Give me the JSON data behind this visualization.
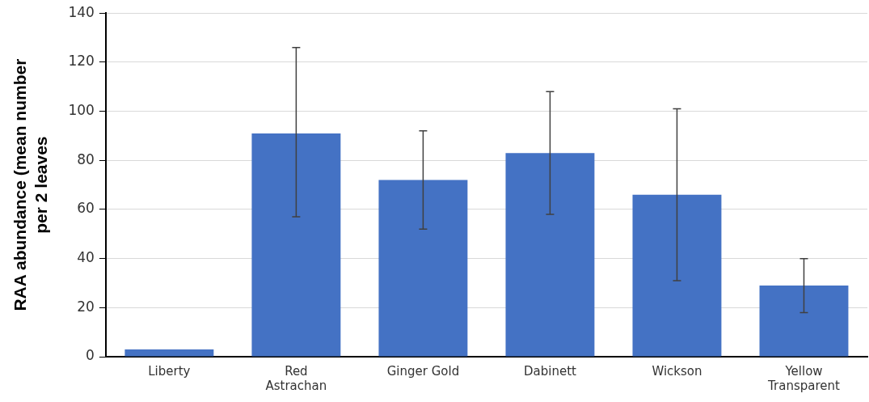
{
  "chart_data": {
    "type": "bar",
    "ylabel": "RAA abundance (mean number per 2 leaves",
    "categories": [
      "Liberty",
      "Red\nAstrachan",
      "Ginger Gold",
      "Dabinett",
      "Wickson",
      "Yellow\nTransparent"
    ],
    "values": [
      3,
      91,
      72,
      83,
      66,
      29
    ],
    "errors": [
      null,
      [
        57,
        126
      ],
      [
        52,
        92
      ],
      [
        58,
        108
      ],
      [
        31,
        101
      ],
      [
        18,
        40
      ]
    ],
    "color": "#4472c4",
    "ylim": [
      0,
      140
    ],
    "yticks": [
      0,
      20,
      40,
      60,
      80,
      100,
      120,
      140
    ],
    "grid": "y"
  }
}
